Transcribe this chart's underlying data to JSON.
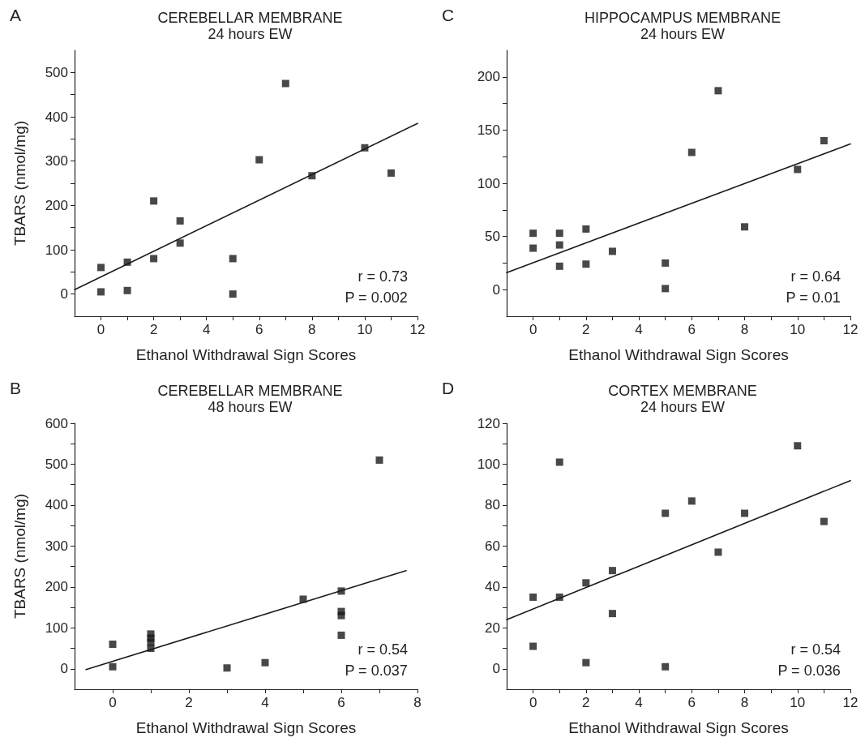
{
  "chart_data": [
    {
      "type": "scatter",
      "title": "CEREBELLAR MEMBRANE",
      "subtitle": "24 hours EW",
      "xlabel": "Ethanol Withdrawal Sign Scores",
      "ylabel": "TBARS (nmol/mg)",
      "annotations": [
        "A",
        "r = 0.73",
        "P = 0.002"
      ],
      "marker": "square",
      "grid": false,
      "xlim": [
        -1,
        12
      ],
      "xticks": [
        0,
        {
          "value": 1,
          "label": null
        },
        2,
        {
          "value": 3,
          "label": null
        },
        4,
        {
          "value": 5,
          "label": null
        },
        6,
        {
          "value": 7,
          "label": null
        },
        8,
        {
          "value": 9,
          "label": null
        },
        10,
        {
          "value": 11,
          "label": null
        },
        12
      ],
      "ylim": [
        -50,
        550
      ],
      "yticks": [
        0,
        {
          "value": 50,
          "label": null
        },
        100,
        {
          "value": 150,
          "label": null
        },
        200,
        {
          "value": 250,
          "label": null
        },
        300,
        {
          "value": 350,
          "label": null
        },
        400,
        {
          "value": 450,
          "label": null
        },
        500
      ],
      "series": [
        {
          "color": "#1a1a1a",
          "x": [
            0,
            0,
            1,
            1,
            2,
            2,
            3,
            3,
            5,
            5,
            6,
            7,
            8,
            10,
            11
          ],
          "values": [
            60,
            5,
            72,
            8,
            210,
            80,
            165,
            115,
            80,
            0,
            303,
            475,
            267,
            330,
            273
          ]
        },
        {
          "type": "line",
          "color": "#1a1a1a",
          "marker": "none",
          "line_style": "solid",
          "x": [
            -1,
            12
          ],
          "values": [
            10,
            385
          ]
        }
      ]
    },
    {
      "type": "scatter",
      "title": "HIPPOCAMPUS MEMBRANE",
      "subtitle": "24 hours EW",
      "xlabel": "Ethanol Withdrawal Sign Scores",
      "annotations": [
        "C",
        "r = 0.64",
        "P = 0.01"
      ],
      "marker": "square",
      "grid": false,
      "xlim": [
        -1,
        12
      ],
      "xticks": [
        0,
        {
          "value": 1,
          "label": null
        },
        2,
        {
          "value": 3,
          "label": null
        },
        4,
        {
          "value": 5,
          "label": null
        },
        6,
        {
          "value": 7,
          "label": null
        },
        8,
        {
          "value": 9,
          "label": null
        },
        10,
        {
          "value": 11,
          "label": null
        },
        12
      ],
      "ylim": [
        -25,
        225
      ],
      "yticks": [
        0,
        {
          "value": 25,
          "label": null
        },
        50,
        {
          "value": 75,
          "label": null
        },
        100,
        {
          "value": 125,
          "label": null
        },
        150,
        {
          "value": 175,
          "label": null
        },
        200
      ],
      "series": [
        {
          "color": "#1a1a1a",
          "x": [
            0,
            0,
            1,
            1,
            1,
            2,
            2,
            3,
            5,
            5,
            6,
            7,
            8,
            10,
            11
          ],
          "values": [
            53,
            39,
            53,
            42,
            22,
            57,
            24,
            36,
            25,
            1,
            129,
            187,
            59,
            113,
            140
          ]
        },
        {
          "type": "line",
          "color": "#1a1a1a",
          "marker": "none",
          "line_style": "solid",
          "x": [
            -1,
            12
          ],
          "values": [
            16,
            137
          ]
        }
      ]
    },
    {
      "type": "scatter",
      "title": "CEREBELLAR MEMBRANE",
      "subtitle": "48 hours EW",
      "xlabel": "Ethanol Withdrawal Sign Scores",
      "ylabel": "TBARS (nmol/mg)",
      "annotations": [
        "B",
        "r = 0.54",
        "P = 0.037"
      ],
      "marker": "square",
      "grid": false,
      "xlim": [
        -1,
        8
      ],
      "xticks": [
        0,
        {
          "value": 1,
          "label": null
        },
        2,
        {
          "value": 3,
          "label": null
        },
        4,
        {
          "value": 5,
          "label": null
        },
        6,
        {
          "value": 7,
          "label": null
        },
        8
      ],
      "ylim": [
        -50,
        600
      ],
      "yticks": [
        0,
        {
          "value": 50,
          "label": null
        },
        100,
        {
          "value": 150,
          "label": null
        },
        200,
        {
          "value": 250,
          "label": null
        },
        300,
        {
          "value": 350,
          "label": null
        },
        400,
        {
          "value": 450,
          "label": null
        },
        500,
        {
          "value": 550,
          "label": null
        },
        600
      ],
      "series": [
        {
          "color": "#1a1a1a",
          "x": [
            0,
            0,
            1,
            1,
            1,
            1,
            3,
            4,
            5,
            6,
            6,
            6,
            6,
            7
          ],
          "values": [
            60,
            5,
            85,
            75,
            65,
            50,
            2,
            15,
            170,
            190,
            140,
            130,
            82,
            510
          ]
        },
        {
          "type": "line",
          "color": "#1a1a1a",
          "marker": "none",
          "line_style": "solid",
          "x": [
            -0.7,
            7.7
          ],
          "values": [
            -2,
            240
          ]
        }
      ]
    },
    {
      "type": "scatter",
      "title": "CORTEX MEMBRANE",
      "subtitle": "24 hours EW",
      "xlabel": "Ethanol Withdrawal Sign Scores",
      "annotations": [
        "D",
        "r = 0.54",
        "P = 0.036"
      ],
      "marker": "square",
      "grid": false,
      "xlim": [
        -1,
        12
      ],
      "xticks": [
        0,
        {
          "value": 1,
          "label": null
        },
        2,
        {
          "value": 3,
          "label": null
        },
        4,
        {
          "value": 5,
          "label": null
        },
        6,
        {
          "value": 7,
          "label": null
        },
        8,
        {
          "value": 9,
          "label": null
        },
        10,
        {
          "value": 11,
          "label": null
        },
        12
      ],
      "ylim": [
        -10,
        120
      ],
      "yticks": [
        0,
        {
          "value": 10,
          "label": null
        },
        20,
        {
          "value": 30,
          "label": null
        },
        40,
        {
          "value": 50,
          "label": null
        },
        60,
        {
          "value": 70,
          "label": null
        },
        80,
        {
          "value": 90,
          "label": null
        },
        100,
        {
          "value": 110,
          "label": null
        },
        120
      ],
      "series": [
        {
          "color": "#1a1a1a",
          "x": [
            0,
            0,
            1,
            1,
            2,
            2,
            3,
            3,
            5,
            5,
            6,
            7,
            8,
            10,
            11
          ],
          "values": [
            35,
            11,
            101,
            35,
            42,
            3,
            48,
            27,
            76,
            1,
            82,
            57,
            76,
            109,
            72
          ]
        },
        {
          "type": "line",
          "color": "#1a1a1a",
          "marker": "none",
          "line_style": "solid",
          "x": [
            -1,
            12
          ],
          "values": [
            24,
            92
          ]
        }
      ]
    }
  ]
}
